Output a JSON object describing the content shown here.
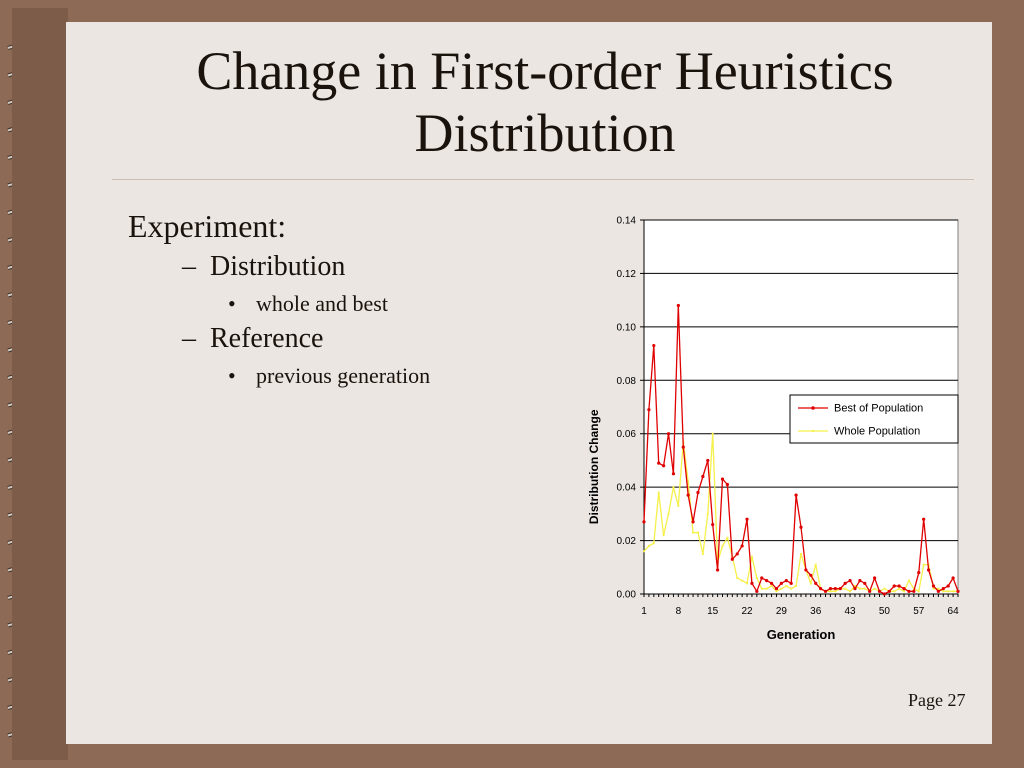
{
  "slide": {
    "title_line1": "Change in First-order Heuristics",
    "title_line2": "Distribution",
    "bullets": [
      {
        "level": 1,
        "text": "Experiment:"
      },
      {
        "level": 2,
        "text": "Distribution"
      },
      {
        "level": 3,
        "text": "whole and best"
      },
      {
        "level": 2,
        "text": "Reference"
      },
      {
        "level": 3,
        "text": "previous generation"
      }
    ],
    "page_label": "Page 27"
  },
  "colors": {
    "background": "#8c6a55",
    "slide": "#ebe6e2",
    "best_series": "#e00000",
    "whole_series": "#f5f04a"
  },
  "chart_data": {
    "type": "line",
    "xlabel": "Generation",
    "ylabel": "Distribution Change",
    "xlim": [
      1,
      65
    ],
    "ylim": [
      0,
      0.14
    ],
    "yticks": [
      "0.00",
      "0.02",
      "0.04",
      "0.06",
      "0.08",
      "0.10",
      "0.12",
      "0.14"
    ],
    "xticks": [
      "1",
      "8",
      "15",
      "22",
      "29",
      "36",
      "43",
      "50",
      "57",
      "64"
    ],
    "grid": true,
    "legend": "right",
    "series": [
      {
        "name": "Best of Population",
        "color": "#e00000",
        "x": [
          1,
          2,
          3,
          4,
          5,
          6,
          7,
          8,
          9,
          10,
          11,
          12,
          13,
          14,
          15,
          16,
          17,
          18,
          19,
          20,
          21,
          22,
          23,
          24,
          25,
          26,
          27,
          28,
          29,
          30,
          31,
          32,
          33,
          34,
          35,
          36,
          37,
          38,
          39,
          40,
          41,
          42,
          43,
          44,
          45,
          46,
          47,
          48,
          49,
          50,
          51,
          52,
          53,
          54,
          55,
          56,
          57,
          58,
          59,
          60,
          61,
          62,
          63,
          64,
          65
        ],
        "values": [
          0.027,
          0.069,
          0.093,
          0.049,
          0.048,
          0.06,
          0.045,
          0.108,
          0.055,
          0.037,
          0.027,
          0.038,
          0.044,
          0.05,
          0.026,
          0.009,
          0.043,
          0.041,
          0.013,
          0.015,
          0.018,
          0.028,
          0.004,
          0.001,
          0.006,
          0.005,
          0.004,
          0.002,
          0.004,
          0.005,
          0.004,
          0.037,
          0.025,
          0.009,
          0.007,
          0.004,
          0.002,
          0.001,
          0.002,
          0.002,
          0.002,
          0.004,
          0.005,
          0.002,
          0.005,
          0.004,
          0.001,
          0.006,
          0.001,
          0.0,
          0.001,
          0.003,
          0.003,
          0.002,
          0.001,
          0.001,
          0.008,
          0.028,
          0.009,
          0.003,
          0.001,
          0.002,
          0.003,
          0.006,
          0.001
        ]
      },
      {
        "name": "Whole Population",
        "color": "#f5f04a",
        "x": [
          1,
          2,
          3,
          4,
          5,
          6,
          7,
          8,
          9,
          10,
          11,
          12,
          13,
          14,
          15,
          16,
          17,
          18,
          19,
          20,
          21,
          22,
          23,
          24,
          25,
          26,
          27,
          28,
          29,
          30,
          31,
          32,
          33,
          34,
          35,
          36,
          37,
          38,
          39,
          40,
          41,
          42,
          43,
          44,
          45,
          46,
          47,
          48,
          49,
          50,
          51,
          52,
          53,
          54,
          55,
          56,
          57,
          58,
          59,
          60,
          61,
          62,
          63,
          64,
          65
        ],
        "values": [
          0.016,
          0.018,
          0.019,
          0.038,
          0.022,
          0.03,
          0.04,
          0.033,
          0.057,
          0.042,
          0.023,
          0.023,
          0.015,
          0.03,
          0.06,
          0.012,
          0.018,
          0.021,
          0.014,
          0.006,
          0.005,
          0.004,
          0.014,
          0.006,
          0.002,
          0.002,
          0.003,
          0.001,
          0.002,
          0.003,
          0.002,
          0.003,
          0.015,
          0.009,
          0.004,
          0.011,
          0.002,
          0.001,
          0.001,
          0.001,
          0.002,
          0.002,
          0.001,
          0.003,
          0.002,
          0.002,
          0.001,
          0.002,
          0.001,
          0.002,
          0.001,
          0.001,
          0.002,
          0.001,
          0.005,
          0.002,
          0.001,
          0.011,
          0.011,
          0.002,
          0.002,
          0.001,
          0.001,
          0.001,
          0.001
        ]
      }
    ]
  }
}
